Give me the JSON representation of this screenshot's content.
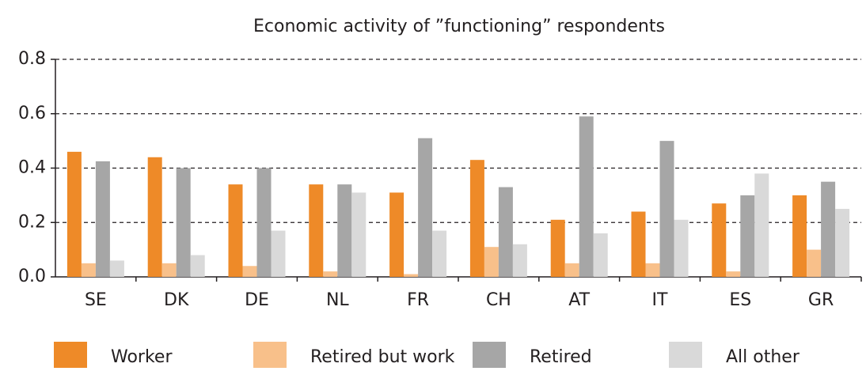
{
  "chart_data": {
    "type": "bar",
    "title": "Economic activity of ”functioning” respondents",
    "categories": [
      "SE",
      "DK",
      "DE",
      "NL",
      "FR",
      "CH",
      "AT",
      "IT",
      "ES",
      "GR"
    ],
    "series": [
      {
        "name": "Worker",
        "color": "#ee8a28",
        "values": [
          0.46,
          0.44,
          0.34,
          0.34,
          0.31,
          0.43,
          0.21,
          0.24,
          0.27,
          0.3
        ]
      },
      {
        "name": "Retired but work",
        "color": "#f8c08a",
        "values": [
          0.05,
          0.05,
          0.04,
          0.02,
          0.01,
          0.11,
          0.05,
          0.05,
          0.02,
          0.1
        ]
      },
      {
        "name": "Retired",
        "color": "#a6a6a6",
        "values": [
          0.425,
          0.4,
          0.4,
          0.34,
          0.51,
          0.33,
          0.59,
          0.5,
          0.3,
          0.35
        ]
      },
      {
        "name": "All other",
        "color": "#d9d9d9",
        "values": [
          0.06,
          0.08,
          0.17,
          0.31,
          0.17,
          0.12,
          0.16,
          0.21,
          0.38,
          0.25
        ]
      }
    ],
    "ylim": [
      0,
      0.8
    ],
    "yticks": [
      {
        "value": 0,
        "label": "0.0"
      },
      0.2,
      0.4,
      0.6,
      0.8
    ],
    "grid": true,
    "legend": "bottom"
  }
}
